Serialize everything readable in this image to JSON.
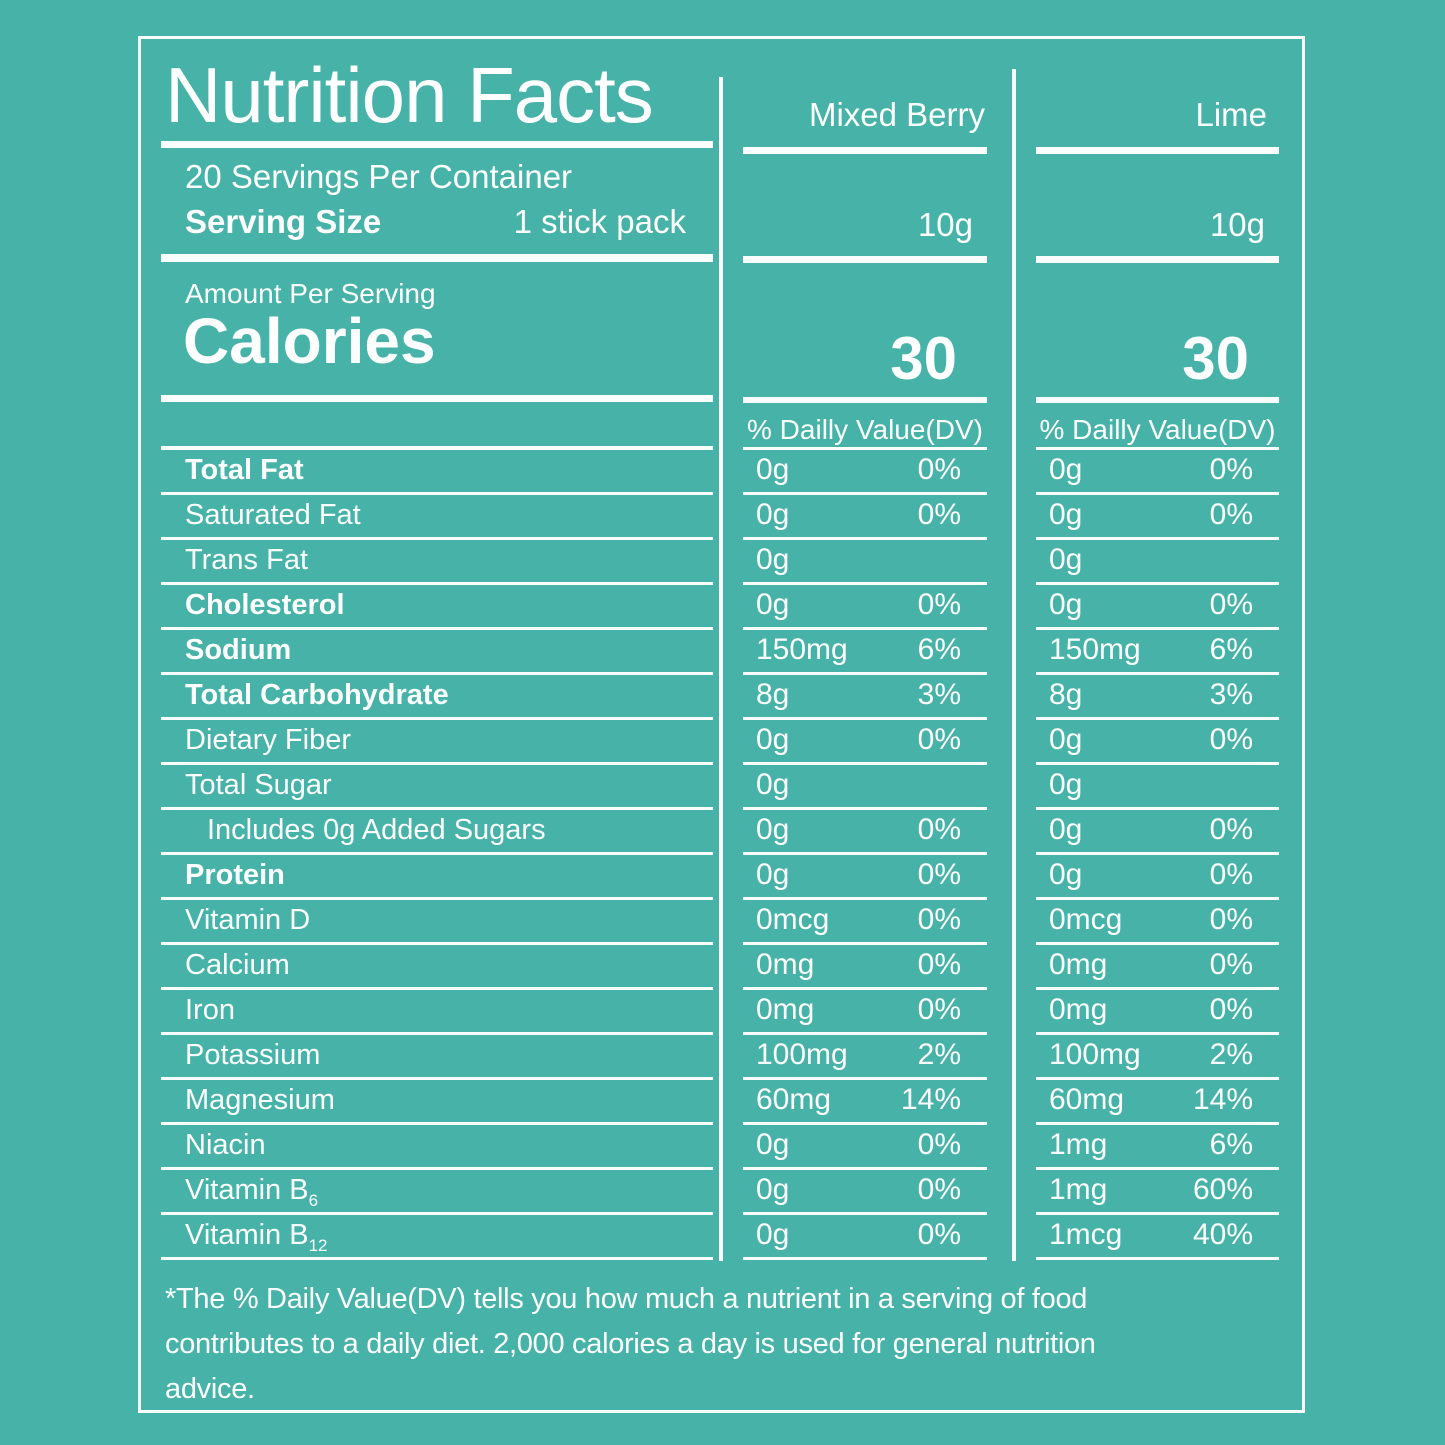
{
  "colors": {
    "background": "#46b2a8",
    "ink": "#fcfffe"
  },
  "label": {
    "title": "Nutrition Facts",
    "servings_per_container": "20 Servings Per Container",
    "serving_size_label": "Serving Size",
    "serving_size_value": "1 stick pack",
    "amount_per_serving": "Amount Per Serving",
    "calories_label": "Calories",
    "flavors": [
      {
        "name": "Mixed Berry",
        "serving": "10g",
        "calories": "30",
        "dv_header": "% Dailly Value(DV)"
      },
      {
        "name": "Lime",
        "serving": "10g",
        "calories": "30",
        "dv_header": "% Dailly Value(DV)"
      }
    ],
    "rows": [
      {
        "label": "Total Fat",
        "bold": true,
        "indent": false,
        "values": [
          {
            "amount": "0g",
            "dv": "0%"
          },
          {
            "amount": "0g",
            "dv": "0%"
          }
        ]
      },
      {
        "label": "Saturated Fat",
        "bold": false,
        "indent": false,
        "values": [
          {
            "amount": "0g",
            "dv": "0%"
          },
          {
            "amount": "0g",
            "dv": "0%"
          }
        ]
      },
      {
        "label": "Trans Fat",
        "bold": false,
        "indent": false,
        "values": [
          {
            "amount": "0g",
            "dv": ""
          },
          {
            "amount": "0g",
            "dv": ""
          }
        ]
      },
      {
        "label": "Cholesterol",
        "bold": true,
        "indent": false,
        "values": [
          {
            "amount": "0g",
            "dv": "0%"
          },
          {
            "amount": "0g",
            "dv": "0%"
          }
        ]
      },
      {
        "label": "Sodium",
        "bold": true,
        "indent": false,
        "values": [
          {
            "amount": "150mg",
            "dv": "6%"
          },
          {
            "amount": "150mg",
            "dv": "6%"
          }
        ]
      },
      {
        "label": "Total Carbohydrate",
        "bold": true,
        "indent": false,
        "values": [
          {
            "amount": "8g",
            "dv": "3%"
          },
          {
            "amount": "8g",
            "dv": "3%"
          }
        ]
      },
      {
        "label": "Dietary Fiber",
        "bold": false,
        "indent": false,
        "values": [
          {
            "amount": "0g",
            "dv": "0%"
          },
          {
            "amount": "0g",
            "dv": "0%"
          }
        ]
      },
      {
        "label": "Total Sugar",
        "bold": false,
        "indent": false,
        "values": [
          {
            "amount": "0g",
            "dv": ""
          },
          {
            "amount": "0g",
            "dv": ""
          }
        ]
      },
      {
        "label": "Includes 0g Added Sugars",
        "bold": false,
        "indent": true,
        "values": [
          {
            "amount": "0g",
            "dv": "0%"
          },
          {
            "amount": "0g",
            "dv": "0%"
          }
        ]
      },
      {
        "label": "Protein",
        "bold": true,
        "indent": false,
        "values": [
          {
            "amount": "0g",
            "dv": "0%"
          },
          {
            "amount": "0g",
            "dv": "0%"
          }
        ]
      },
      {
        "label": "Vitamin D",
        "bold": false,
        "indent": false,
        "values": [
          {
            "amount": "0mcg",
            "dv": "0%"
          },
          {
            "amount": "0mcg",
            "dv": "0%"
          }
        ]
      },
      {
        "label": "Calcium",
        "bold": false,
        "indent": false,
        "values": [
          {
            "amount": "0mg",
            "dv": "0%"
          },
          {
            "amount": "0mg",
            "dv": "0%"
          }
        ]
      },
      {
        "label": "Iron",
        "bold": false,
        "indent": false,
        "values": [
          {
            "amount": "0mg",
            "dv": "0%"
          },
          {
            "amount": "0mg",
            "dv": "0%"
          }
        ]
      },
      {
        "label": "Potassium",
        "bold": false,
        "indent": false,
        "values": [
          {
            "amount": "100mg",
            "dv": "2%"
          },
          {
            "amount": "100mg",
            "dv": "2%"
          }
        ]
      },
      {
        "label": "Magnesium",
        "bold": false,
        "indent": false,
        "values": [
          {
            "amount": "60mg",
            "dv": "14%"
          },
          {
            "amount": "60mg",
            "dv": "14%"
          }
        ]
      },
      {
        "label": "Niacin",
        "bold": false,
        "indent": false,
        "values": [
          {
            "amount": "0g",
            "dv": "0%"
          },
          {
            "amount": "1mg",
            "dv": "6%"
          }
        ]
      },
      {
        "label": "Vitamin B",
        "sub": "6",
        "bold": false,
        "indent": false,
        "values": [
          {
            "amount": "0g",
            "dv": "0%"
          },
          {
            "amount": "1mg",
            "dv": "60%"
          }
        ]
      },
      {
        "label": "Vitamin B",
        "sub": "12",
        "bold": false,
        "indent": false,
        "values": [
          {
            "amount": "0g",
            "dv": "0%"
          },
          {
            "amount": "1mcg",
            "dv": "40%"
          }
        ]
      }
    ],
    "footnote_lines": [
      "*The % Daily Value(DV) tells you how much a nutrient in a serving of food",
      "contributes to a daily diet. 2,000 calories a day is used for general nutrition",
      "advice."
    ]
  }
}
